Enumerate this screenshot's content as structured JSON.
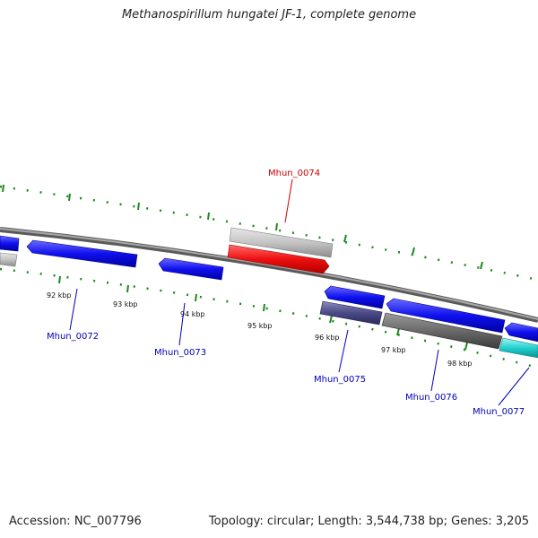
{
  "title": "Methanospirillum hungatei JF-1, complete genome",
  "accession": "Accession: NC_007796",
  "summary": "Topology: circular; Length: 3,544,738 bp; Genes: 3,205",
  "colors": {
    "backbone": "#7f7f7f",
    "tick_outer": "#1a8a1a",
    "label_forward": "#cc0000",
    "label_reverse": "#0000bb"
  },
  "scale_labels": [
    "92 kbp",
    "93 kbp",
    "94 kbp",
    "95 kbp",
    "96 kbp",
    "97 kbp",
    "98 kbp"
  ],
  "gene_labels": {
    "mhun_0072": "Mhun_0072",
    "mhun_0073": "Mhun_0073",
    "mhun_0074": "Mhun_0074",
    "mhun_0075": "Mhun_0075",
    "mhun_0076": "Mhun_0076",
    "mhun_0077": "Mhun_0077"
  }
}
